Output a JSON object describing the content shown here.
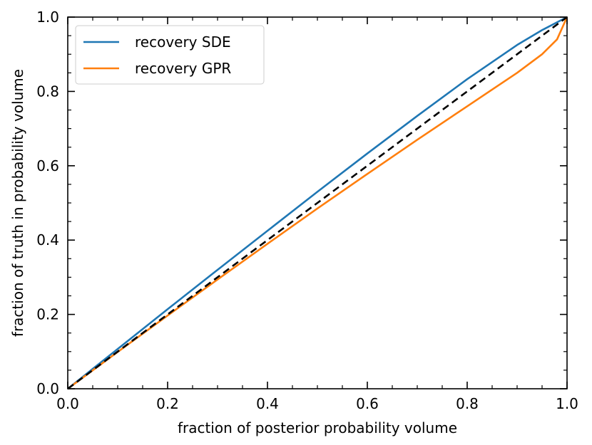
{
  "chart_data": {
    "type": "line",
    "xlabel": "fraction of posterior probability volume",
    "ylabel": "fraction of truth in probability volume",
    "xlim": [
      0,
      1
    ],
    "ylim": [
      0,
      1
    ],
    "x_ticks": [
      "0.0",
      "0.2",
      "0.4",
      "0.6",
      "0.8",
      "1.0"
    ],
    "y_ticks": [
      "0.0",
      "0.2",
      "0.4",
      "0.6",
      "0.8",
      "1.0"
    ],
    "grid": false,
    "legend_position": "top-left",
    "series": [
      {
        "name": "recovery SDE",
        "color": "#1f77b4",
        "style": "solid",
        "x": [
          0.0,
          0.1,
          0.2,
          0.3,
          0.4,
          0.5,
          0.6,
          0.7,
          0.8,
          0.9,
          0.95,
          1.0
        ],
        "y": [
          0.0,
          0.107,
          0.214,
          0.32,
          0.425,
          0.53,
          0.633,
          0.734,
          0.833,
          0.925,
          0.965,
          1.0
        ]
      },
      {
        "name": "recovery GPR",
        "color": "#ff7f0e",
        "style": "solid",
        "x": [
          0.0,
          0.1,
          0.2,
          0.3,
          0.4,
          0.5,
          0.6,
          0.7,
          0.8,
          0.9,
          0.95,
          0.98,
          1.0
        ],
        "y": [
          0.0,
          0.099,
          0.197,
          0.294,
          0.39,
          0.485,
          0.578,
          0.67,
          0.76,
          0.85,
          0.9,
          0.94,
          1.0
        ]
      },
      {
        "color": "#000000",
        "style": "dashed",
        "x": [
          0.0,
          1.0
        ],
        "y": [
          0.0,
          1.0
        ]
      }
    ]
  }
}
